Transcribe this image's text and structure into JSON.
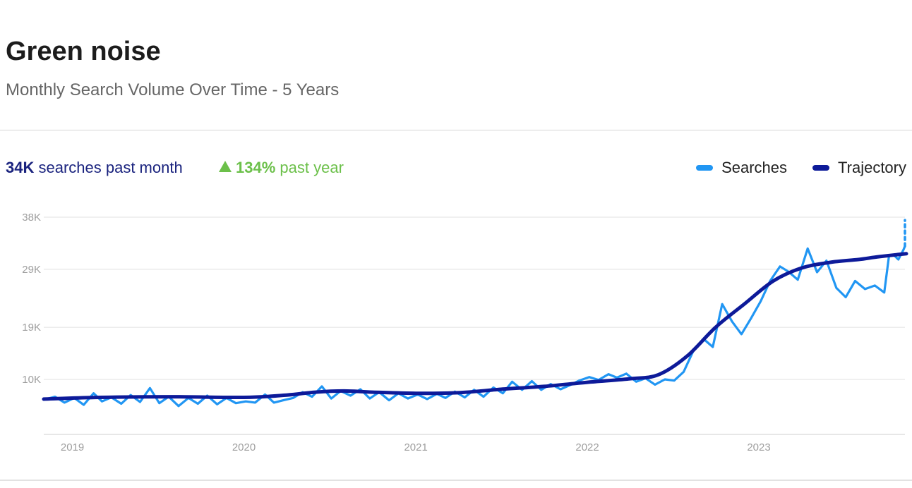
{
  "header": {
    "title": "Green noise",
    "subtitle": "Monthly Search Volume Over Time - 5 Years"
  },
  "stats": {
    "volume_value": "34K",
    "volume_label": "searches past month",
    "growth_value": "134%",
    "growth_label": "past year"
  },
  "legend": {
    "searches": "Searches",
    "trajectory": "Trajectory"
  },
  "colors": {
    "searches": "#2196f3",
    "trajectory": "#0d1a99",
    "growth": "#6cc04a",
    "volume": "#1a237e",
    "grid": "#e0e0e0"
  },
  "chart_data": {
    "type": "line",
    "y_ticks": [
      10000,
      19000,
      29000,
      38000
    ],
    "y_tick_labels": [
      "10K",
      "19K",
      "29K",
      "38K"
    ],
    "ylim": [
      3000,
      38000
    ],
    "x_tick_labels": [
      "2019",
      "2020",
      "2021",
      "2022",
      "2023"
    ],
    "x_tick_dates": [
      "2019-01-01",
      "2020-01-01",
      "2021-01-01",
      "2022-01-01",
      "2023-01-01"
    ],
    "xlim": [
      "2018-11-01",
      "2023-11-08"
    ],
    "grid": true,
    "legend_position": "top-right",
    "series": [
      {
        "name": "Searches",
        "style": "jagged",
        "points": [
          [
            "2018-11-01",
            6500
          ],
          [
            "2018-11-25",
            7000
          ],
          [
            "2018-12-15",
            6000
          ],
          [
            "2019-01-05",
            6800
          ],
          [
            "2019-01-25",
            5600
          ],
          [
            "2019-02-15",
            7600
          ],
          [
            "2019-03-05",
            6200
          ],
          [
            "2019-03-25",
            6900
          ],
          [
            "2019-04-15",
            5800
          ],
          [
            "2019-05-05",
            7300
          ],
          [
            "2019-05-25",
            6100
          ],
          [
            "2019-06-15",
            8500
          ],
          [
            "2019-07-05",
            5900
          ],
          [
            "2019-07-25",
            7000
          ],
          [
            "2019-08-15",
            5400
          ],
          [
            "2019-09-05",
            6800
          ],
          [
            "2019-09-25",
            5800
          ],
          [
            "2019-10-15",
            7200
          ],
          [
            "2019-11-05",
            5700
          ],
          [
            "2019-11-25",
            6800
          ],
          [
            "2019-12-15",
            5900
          ],
          [
            "2020-01-05",
            6200
          ],
          [
            "2020-01-25",
            6000
          ],
          [
            "2020-02-15",
            7400
          ],
          [
            "2020-03-05",
            6000
          ],
          [
            "2020-03-25",
            6400
          ],
          [
            "2020-04-15",
            6800
          ],
          [
            "2020-05-05",
            7800
          ],
          [
            "2020-05-25",
            7000
          ],
          [
            "2020-06-15",
            8800
          ],
          [
            "2020-07-05",
            6700
          ],
          [
            "2020-07-25",
            8000
          ],
          [
            "2020-08-15",
            7200
          ],
          [
            "2020-09-05",
            8300
          ],
          [
            "2020-09-25",
            6700
          ],
          [
            "2020-10-15",
            7800
          ],
          [
            "2020-11-05",
            6400
          ],
          [
            "2020-11-25",
            7600
          ],
          [
            "2020-12-15",
            6700
          ],
          [
            "2021-01-05",
            7400
          ],
          [
            "2021-01-25",
            6600
          ],
          [
            "2021-02-15",
            7500
          ],
          [
            "2021-03-05",
            6800
          ],
          [
            "2021-03-25",
            7900
          ],
          [
            "2021-04-15",
            6900
          ],
          [
            "2021-05-05",
            8200
          ],
          [
            "2021-05-25",
            7000
          ],
          [
            "2021-06-15",
            8600
          ],
          [
            "2021-07-05",
            7600
          ],
          [
            "2021-07-25",
            9600
          ],
          [
            "2021-08-15",
            8200
          ],
          [
            "2021-09-05",
            9700
          ],
          [
            "2021-09-25",
            8200
          ],
          [
            "2021-10-15",
            9200
          ],
          [
            "2021-11-05",
            8300
          ],
          [
            "2021-11-25",
            9000
          ],
          [
            "2021-12-15",
            9800
          ],
          [
            "2022-01-05",
            10400
          ],
          [
            "2022-01-25",
            9900
          ],
          [
            "2022-02-15",
            10900
          ],
          [
            "2022-03-05",
            10300
          ],
          [
            "2022-03-25",
            11000
          ],
          [
            "2022-04-15",
            9600
          ],
          [
            "2022-05-05",
            10200
          ],
          [
            "2022-05-25",
            9100
          ],
          [
            "2022-06-15",
            10000
          ],
          [
            "2022-07-05",
            9800
          ],
          [
            "2022-07-25",
            11300
          ],
          [
            "2022-08-15",
            15000
          ],
          [
            "2022-09-05",
            17000
          ],
          [
            "2022-09-25",
            15600
          ],
          [
            "2022-10-15",
            23000
          ],
          [
            "2022-11-05",
            20000
          ],
          [
            "2022-11-25",
            17800
          ],
          [
            "2022-12-15",
            20500
          ],
          [
            "2023-01-05",
            23500
          ],
          [
            "2023-01-25",
            27000
          ],
          [
            "2023-02-15",
            29500
          ],
          [
            "2023-03-05",
            28600
          ],
          [
            "2023-03-25",
            27200
          ],
          [
            "2023-04-15",
            32600
          ],
          [
            "2023-05-05",
            28500
          ],
          [
            "2023-05-25",
            30500
          ],
          [
            "2023-06-15",
            25800
          ],
          [
            "2023-07-05",
            24200
          ],
          [
            "2023-07-25",
            27000
          ],
          [
            "2023-08-15",
            25600
          ],
          [
            "2023-09-05",
            26200
          ],
          [
            "2023-09-25",
            25000
          ],
          [
            "2023-10-05",
            31300
          ],
          [
            "2023-10-15",
            31500
          ],
          [
            "2023-10-25",
            30700
          ],
          [
            "2023-11-05",
            32400
          ],
          [
            "2023-11-08",
            33000
          ]
        ],
        "projection": [
          [
            "2023-11-08",
            33000
          ],
          [
            "2023-11-20",
            37500
          ]
        ]
      },
      {
        "name": "Trajectory",
        "points": [
          [
            "2018-11-01",
            6600
          ],
          [
            "2019-03-01",
            6900
          ],
          [
            "2019-08-01",
            7000
          ],
          [
            "2020-01-01",
            6900
          ],
          [
            "2020-04-01",
            7300
          ],
          [
            "2020-06-01",
            7800
          ],
          [
            "2020-08-01",
            8000
          ],
          [
            "2020-10-01",
            7800
          ],
          [
            "2021-01-01",
            7600
          ],
          [
            "2021-04-01",
            7700
          ],
          [
            "2021-07-01",
            8300
          ],
          [
            "2021-10-01",
            8800
          ],
          [
            "2022-01-01",
            9500
          ],
          [
            "2022-04-01",
            10100
          ],
          [
            "2022-06-01",
            10800
          ],
          [
            "2022-08-01",
            14000
          ],
          [
            "2022-10-01",
            19000
          ],
          [
            "2022-12-01",
            23000
          ],
          [
            "2023-02-01",
            27000
          ],
          [
            "2023-04-01",
            29200
          ],
          [
            "2023-06-01",
            30200
          ],
          [
            "2023-08-01",
            30700
          ],
          [
            "2023-09-15",
            31200
          ],
          [
            "2023-11-20",
            31700
          ]
        ]
      }
    ]
  }
}
